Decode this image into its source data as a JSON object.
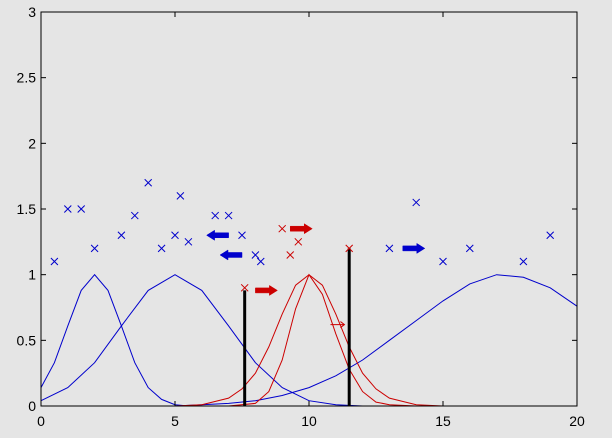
{
  "chart_data": {
    "type": "line",
    "title": "",
    "xlabel": "",
    "ylabel": "",
    "xlim": [
      0,
      20
    ],
    "ylim": [
      0,
      3
    ],
    "x_ticks": [
      0,
      5,
      10,
      15,
      20
    ],
    "x_tick_labels": [
      "0",
      "5",
      "10",
      "15",
      "20"
    ],
    "y_ticks": [
      0,
      0.5,
      1,
      1.5,
      2,
      2.5,
      3
    ],
    "y_tick_labels": [
      "0",
      "0.5",
      "1",
      "1.5",
      "2",
      "2.5",
      "3"
    ],
    "grid": false,
    "colors": {
      "blue": "#0000cc",
      "red": "#cc0000",
      "black": "#000000",
      "axes_bg": "#e5e5e5"
    },
    "curves": [
      {
        "color": "blue",
        "x": [
          0,
          0.5,
          1,
          1.5,
          2,
          2.5,
          3,
          3.5,
          4,
          4.5,
          5,
          5.5,
          6,
          6.5,
          7,
          7.5,
          8,
          8.5,
          9
        ],
        "y": [
          0.14,
          0.33,
          0.61,
          0.88,
          1.0,
          0.88,
          0.61,
          0.33,
          0.14,
          0.05,
          0.01,
          0.0,
          0.0,
          0.0,
          0.0,
          0.0,
          0.0,
          0.0,
          0.0
        ]
      },
      {
        "color": "blue",
        "x": [
          0,
          1,
          2,
          3,
          4,
          5,
          6,
          7,
          8,
          9,
          10,
          11,
          12
        ],
        "y": [
          0.04,
          0.14,
          0.33,
          0.61,
          0.88,
          1.0,
          0.88,
          0.61,
          0.33,
          0.14,
          0.04,
          0.01,
          0.0
        ]
      },
      {
        "color": "blue",
        "x": [
          5,
          6,
          7,
          8,
          9,
          10,
          11,
          12,
          13,
          14,
          15,
          16,
          17,
          18,
          19,
          20
        ],
        "y": [
          0.0,
          0.01,
          0.02,
          0.04,
          0.08,
          0.14,
          0.23,
          0.35,
          0.5,
          0.65,
          0.8,
          0.93,
          1.0,
          0.98,
          0.9,
          0.76
        ]
      },
      {
        "color": "red",
        "x": [
          5,
          6,
          7,
          7.5,
          8,
          8.5,
          9,
          9.5,
          10,
          10.5,
          11,
          11.5,
          12,
          12.5,
          13,
          14,
          15
        ],
        "y": [
          0.0,
          0.01,
          0.06,
          0.13,
          0.25,
          0.45,
          0.7,
          0.92,
          1.0,
          0.92,
          0.7,
          0.45,
          0.25,
          0.13,
          0.06,
          0.01,
          0.0
        ]
      },
      {
        "color": "red",
        "x": [
          7,
          8,
          8.5,
          9,
          9.5,
          10,
          10.5,
          11,
          11.5,
          12,
          12.5,
          13,
          14
        ],
        "y": [
          0.0,
          0.02,
          0.11,
          0.35,
          0.74,
          1.0,
          0.85,
          0.55,
          0.28,
          0.11,
          0.03,
          0.01,
          0.0
        ]
      },
      {
        "color": "red",
        "x": [
          0,
          20
        ],
        "y": [
          0.0,
          0.0
        ]
      }
    ],
    "points": [
      {
        "color": "blue",
        "x": 0.5,
        "y": 1.1
      },
      {
        "color": "blue",
        "x": 1.0,
        "y": 1.5
      },
      {
        "color": "blue",
        "x": 1.5,
        "y": 1.5
      },
      {
        "color": "blue",
        "x": 2.0,
        "y": 1.2
      },
      {
        "color": "blue",
        "x": 3.0,
        "y": 1.3
      },
      {
        "color": "blue",
        "x": 3.5,
        "y": 1.45
      },
      {
        "color": "blue",
        "x": 4.0,
        "y": 1.7
      },
      {
        "color": "blue",
        "x": 4.5,
        "y": 1.2
      },
      {
        "color": "blue",
        "x": 5.0,
        "y": 1.3
      },
      {
        "color": "blue",
        "x": 5.2,
        "y": 1.6
      },
      {
        "color": "blue",
        "x": 5.5,
        "y": 1.25
      },
      {
        "color": "blue",
        "x": 6.5,
        "y": 1.45
      },
      {
        "color": "blue",
        "x": 7.0,
        "y": 1.45
      },
      {
        "color": "blue",
        "x": 7.5,
        "y": 1.3
      },
      {
        "color": "blue",
        "x": 8.0,
        "y": 1.15
      },
      {
        "color": "blue",
        "x": 8.2,
        "y": 1.1
      },
      {
        "color": "blue",
        "x": 13.0,
        "y": 1.2
      },
      {
        "color": "blue",
        "x": 14.0,
        "y": 1.55
      },
      {
        "color": "blue",
        "x": 15.0,
        "y": 1.1
      },
      {
        "color": "blue",
        "x": 16.0,
        "y": 1.2
      },
      {
        "color": "blue",
        "x": 18.0,
        "y": 1.1
      },
      {
        "color": "blue",
        "x": 19.0,
        "y": 1.3
      },
      {
        "color": "red",
        "x": 7.6,
        "y": 0.9
      },
      {
        "color": "red",
        "x": 9.0,
        "y": 1.35
      },
      {
        "color": "red",
        "x": 9.3,
        "y": 1.15
      },
      {
        "color": "red",
        "x": 9.6,
        "y": 1.25
      },
      {
        "color": "red",
        "x": 11.5,
        "y": 1.2
      }
    ],
    "vertical_lines": [
      {
        "color": "black",
        "x": 7.6,
        "y_top": 0.88
      },
      {
        "color": "black",
        "x": 11.5,
        "y_top": 1.2
      }
    ],
    "arrows": [
      {
        "color": "blue",
        "direction": "left",
        "x": 7.0,
        "y": 1.3
      },
      {
        "color": "blue",
        "direction": "left",
        "x": 7.5,
        "y": 1.15
      },
      {
        "color": "red",
        "direction": "right",
        "x": 8.0,
        "y": 0.88
      },
      {
        "color": "red",
        "direction": "right",
        "x": 9.3,
        "y": 1.35
      },
      {
        "color": "red",
        "direction": "right",
        "x": 10.8,
        "y": 0.62,
        "thin": true
      },
      {
        "color": "blue",
        "direction": "right",
        "x": 13.5,
        "y": 1.2
      }
    ]
  }
}
